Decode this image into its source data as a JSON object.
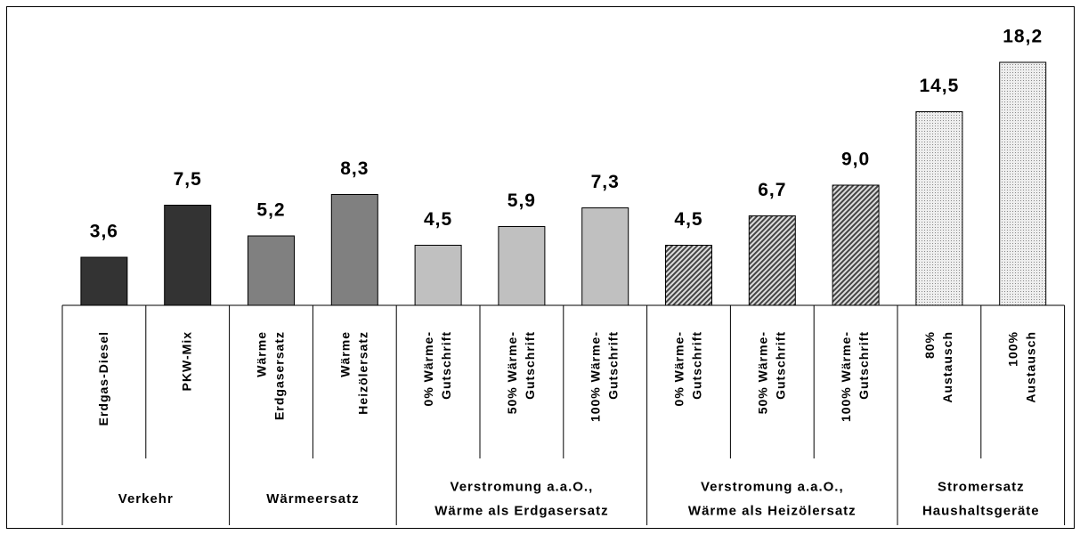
{
  "chart_data": {
    "type": "bar",
    "ylim": [
      0,
      20
    ],
    "series": [
      {
        "name": "Verkehr",
        "color": "#333333",
        "pattern": "solid",
        "categories": [
          "Erdgas-Diesel",
          "PKW-Mix"
        ],
        "values": [
          3.6,
          7.5
        ],
        "value_labels": [
          "3,6",
          "7,5"
        ]
      },
      {
        "name": "Wärmeersatz",
        "color": "#808080",
        "pattern": "solid",
        "categories": [
          "Wärme\nErdgasersatz",
          "Wärme\nHeizölersatz"
        ],
        "values": [
          5.2,
          8.3
        ],
        "value_labels": [
          "5,2",
          "8,3"
        ]
      },
      {
        "name": "Verstromung a.a.O.,\nWärme als Erdgasersatz",
        "color": "#c0c0c0",
        "pattern": "solid",
        "categories": [
          "0% Wärme-\nGutschrift",
          "50% Wärme-\nGutschrift",
          "100% Wärme-\nGutschrift"
        ],
        "values": [
          4.5,
          5.9,
          7.3
        ],
        "value_labels": [
          "4,5",
          "5,9",
          "7,3"
        ]
      },
      {
        "name": "Verstromung a.a.O.,\nWärme als Heizölersatz",
        "color": "#555555",
        "pattern": "hatch",
        "categories": [
          "0% Wärme-\nGutschrift",
          "50% Wärme-\nGutschrift",
          "100% Wärme-\nGutschrift"
        ],
        "values": [
          4.5,
          6.7,
          9.0
        ],
        "value_labels": [
          "4,5",
          "6,7",
          "9,0"
        ]
      },
      {
        "name": "Stromersatz\nHaushaltsgeräte",
        "color": "#aaaaaa",
        "pattern": "dots",
        "categories": [
          "80%\nAustausch",
          "100%\nAustausch"
        ],
        "values": [
          14.5,
          18.2
        ],
        "value_labels": [
          "14,5",
          "18,2"
        ]
      }
    ]
  }
}
